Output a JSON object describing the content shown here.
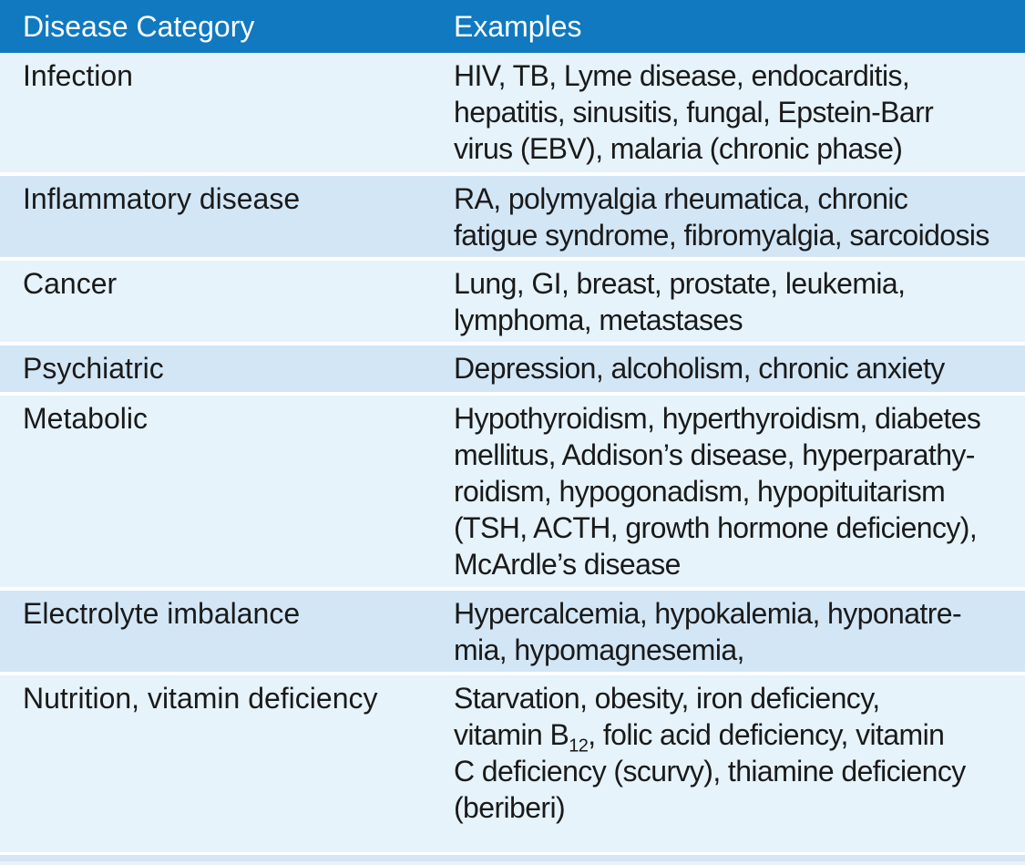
{
  "table": {
    "headers": [
      "Disease Category",
      "Examples"
    ],
    "rows": [
      {
        "category": "Infection",
        "lines": [
          "HIV, TB, Lyme disease, endocarditis,",
          "hepatitis, sinusitis, fungal, Epstein-Barr",
          "virus (EBV), malaria (chronic phase)"
        ]
      },
      {
        "category": "Inflammatory disease",
        "lines": [
          "RA, polymyalgia rheumatica, chronic",
          "fatigue syndrome, fibromyalgia, sarcoidosis"
        ]
      },
      {
        "category": "Cancer",
        "lines": [
          "Lung, GI, breast, prostate, leukemia,",
          "lymphoma, metastases"
        ]
      },
      {
        "category": "Psychiatric",
        "lines": [
          "Depression, alcoholism, chronic anxiety"
        ]
      },
      {
        "category": "Metabolic",
        "lines": [
          "Hypothyroidism, hyperthyroidism, diabetes",
          "mellitus, Addison’s disease, hyperparathy-",
          "roidism, hypogonadism, hypopituitarism",
          "(TSH, ACTH, growth hormone deficiency),",
          "McArdle’s disease"
        ]
      },
      {
        "category": "Electrolyte imbalance",
        "lines": [
          "Hypercalcemia, hypokalemia, hyponatre-",
          "mia, hypomagnesemia,"
        ]
      },
      {
        "category": "Nutrition, vitamin deficiency",
        "lines_rich": [
          {
            "pre": "Starvation, obesity, iron deficiency,"
          },
          {
            "pre": "vitamin B",
            "sub": "12",
            "post": ", folic acid deficiency, vitamin"
          },
          {
            "pre": "C deficiency (scurvy), thiamine deficiency"
          },
          {
            "pre": "(beriberi)"
          }
        ]
      }
    ]
  },
  "colors": {
    "header_bg": "#1079c0",
    "row_light": "#e6f3fb",
    "row_dark": "#d2e6f6"
  }
}
